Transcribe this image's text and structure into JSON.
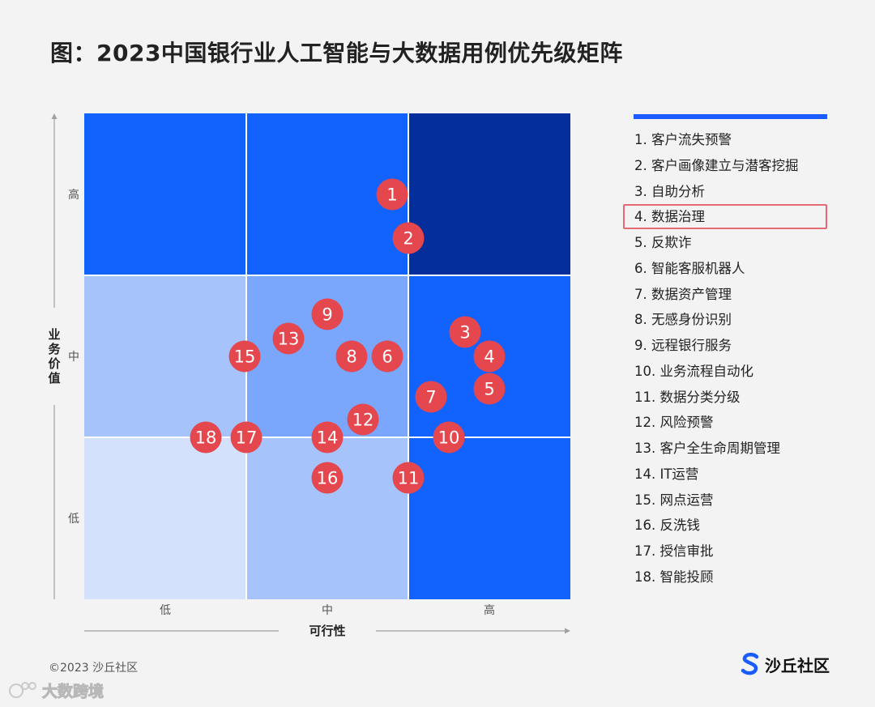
{
  "title": "图：2023中国银行业人工智能与大数据用例优先级矩阵",
  "colors": {
    "accent": "#1a5cff",
    "bubble": "#e5474f",
    "highlight_border": "#e66a73",
    "cells": {
      "low-low": "#d3e1fc",
      "mid-low": "#a6c4fb",
      "high-low": "#1262fd",
      "low-mid": "#a6c4fb",
      "mid-mid": "#7aa6fb",
      "high-mid": "#1262fd",
      "low-high": "#1262fd",
      "mid-high": "#1262fd",
      "high-high": "#032e9b"
    }
  },
  "chart_data": {
    "type": "scatter",
    "title": "图：2023中国银行业人工智能与大数据用例优先级矩阵",
    "xlabel": "可行性",
    "ylabel": "业务价值",
    "x_levels": [
      "低",
      "中",
      "高"
    ],
    "y_levels": [
      "低",
      "中",
      "高"
    ],
    "xlim": [
      0,
      3
    ],
    "ylim": [
      0,
      3
    ],
    "grid": true,
    "points": [
      {
        "id": 1,
        "x": 1.9,
        "y": 2.5
      },
      {
        "id": 2,
        "x": 2.0,
        "y": 2.23
      },
      {
        "id": 3,
        "x": 2.35,
        "y": 1.65
      },
      {
        "id": 4,
        "x": 2.5,
        "y": 1.5
      },
      {
        "id": 5,
        "x": 2.5,
        "y": 1.3
      },
      {
        "id": 6,
        "x": 1.87,
        "y": 1.5
      },
      {
        "id": 7,
        "x": 2.14,
        "y": 1.25
      },
      {
        "id": 8,
        "x": 1.65,
        "y": 1.5
      },
      {
        "id": 9,
        "x": 1.5,
        "y": 1.76
      },
      {
        "id": 10,
        "x": 2.25,
        "y": 1.0
      },
      {
        "id": 11,
        "x": 2.0,
        "y": 0.75
      },
      {
        "id": 12,
        "x": 1.72,
        "y": 1.11
      },
      {
        "id": 13,
        "x": 1.26,
        "y": 1.61
      },
      {
        "id": 14,
        "x": 1.5,
        "y": 1.0
      },
      {
        "id": 15,
        "x": 0.99,
        "y": 1.5
      },
      {
        "id": 16,
        "x": 1.5,
        "y": 0.75
      },
      {
        "id": 17,
        "x": 1.0,
        "y": 1.0
      },
      {
        "id": 18,
        "x": 0.75,
        "y": 1.0
      }
    ]
  },
  "legend": {
    "items": [
      "1.  客户流失预警",
      "2.  客户画像建立与潜客挖掘",
      "3.  自助分析",
      "4.  数据治理",
      "5.  反欺诈",
      "6.  智能客服机器人",
      "7.  数据资产管理",
      "8.  无感身份识别",
      "9.  远程银行服务",
      "10.  业务流程自动化",
      "11.  数据分类分级",
      "12.  风险预警",
      "13. 客户全生命周期管理",
      "14.   IT运营",
      "15.  网点运营",
      "16.  反洗钱",
      "17.  授信审批",
      "18.  智能投顾"
    ],
    "highlighted_index": 3
  },
  "footer": {
    "copyright": "©2023 沙丘社区",
    "brand": "沙丘社区",
    "brand_icon": "s-logo-icon"
  },
  "watermark": {
    "text": "大数跨境",
    "icon": "watermark-logo-icon"
  }
}
